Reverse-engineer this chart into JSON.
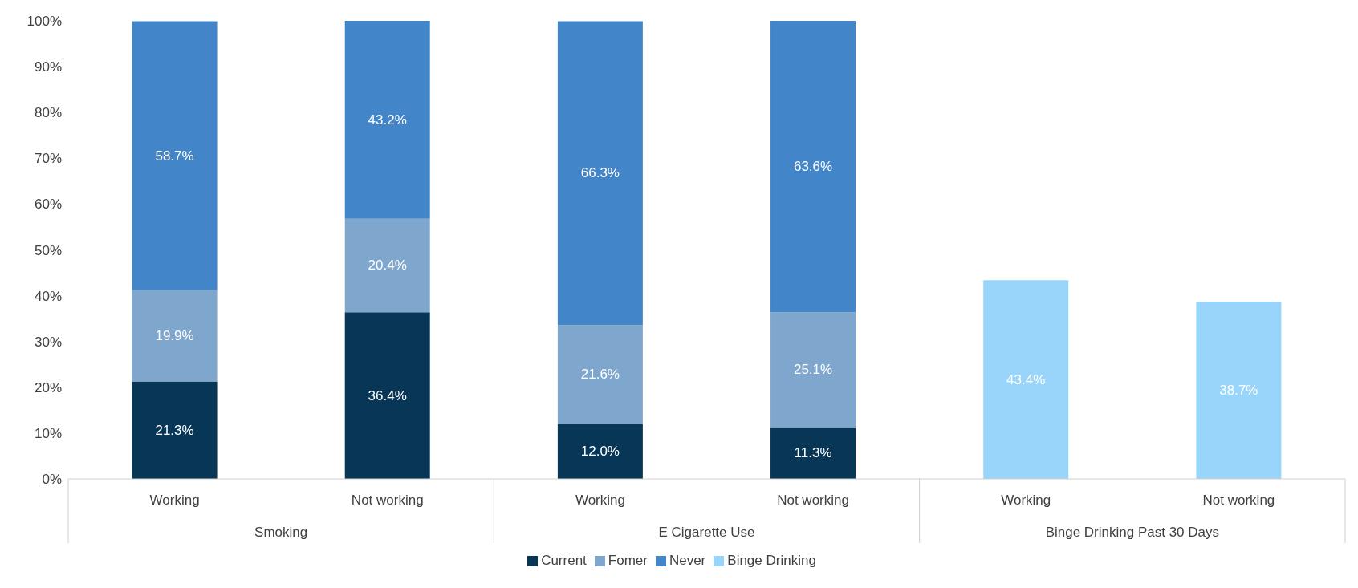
{
  "chart_data": {
    "type": "bar",
    "stacked": true,
    "categories": [
      "Working",
      "Not working",
      "Working",
      "Not working",
      "Working",
      "Not working"
    ],
    "series": [
      {
        "name": "Current",
        "color": "#073657",
        "values": [
          21.3,
          36.4,
          12.0,
          11.3,
          null,
          null
        ],
        "value_labels": [
          "21.3%",
          "36.4%",
          "12.0%",
          "11.3%",
          null,
          null
        ]
      },
      {
        "name": "Fomer",
        "color": "#7fa6cc",
        "values": [
          19.9,
          20.4,
          21.6,
          25.1,
          null,
          null
        ],
        "value_labels": [
          "19.9%",
          "20.4%",
          "21.6%",
          "25.1%",
          null,
          null
        ]
      },
      {
        "name": "Never",
        "color": "#4286c9",
        "values": [
          58.7,
          43.2,
          66.3,
          63.6,
          null,
          null
        ],
        "value_labels": [
          "58.7%",
          "43.2%",
          "66.3%",
          "63.6%",
          null,
          null
        ]
      },
      {
        "name": "Binge Drinking",
        "color": "#99d5fb",
        "values": [
          null,
          null,
          null,
          null,
          43.4,
          38.7
        ],
        "value_labels": [
          null,
          null,
          null,
          null,
          "43.4%",
          "38.7%"
        ]
      }
    ],
    "annotations": [
      "Smoking",
      "E Cigarette Use",
      "Binge Drinking Past 30 Days"
    ],
    "ylim": [
      0,
      100
    ],
    "yticks": [
      {
        "value": 0,
        "label": "0%"
      },
      {
        "value": 10,
        "label": "10%"
      },
      {
        "value": 20,
        "label": "20%"
      },
      {
        "value": 30,
        "label": "30%"
      },
      {
        "value": 40,
        "label": "40%"
      },
      {
        "value": 50,
        "label": "50%"
      },
      {
        "value": 60,
        "label": "60%"
      },
      {
        "value": 70,
        "label": "70%"
      },
      {
        "value": 80,
        "label": "80%"
      },
      {
        "value": 90,
        "label": "90%"
      },
      {
        "value": 100,
        "label": "100%"
      }
    ],
    "grid": false,
    "legend": "bottom"
  }
}
